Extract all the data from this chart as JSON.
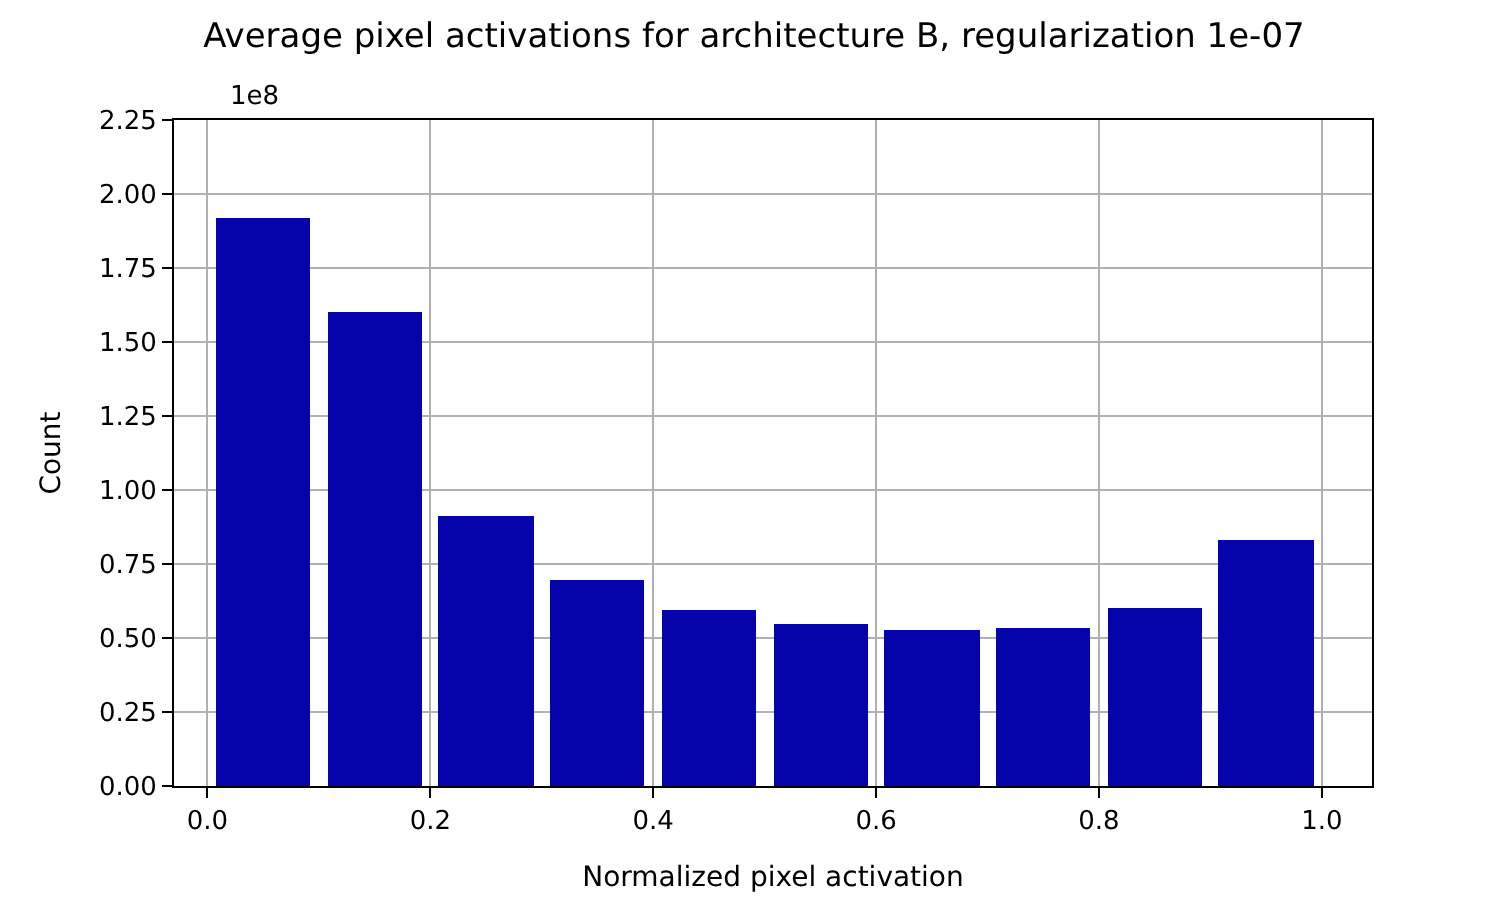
{
  "chart_data": {
    "type": "histogram",
    "title": "Average pixel activations for architecture B, regularization 1e-07",
    "xlabel": "Normalized pixel activation",
    "ylabel": "Count",
    "annotations": [
      "1e8"
    ],
    "bins": [
      0,
      0.1,
      0.2,
      0.3,
      0.4,
      0.5,
      0.6,
      0.7,
      0.8,
      0.9,
      1.0
    ],
    "values": [
      1.92,
      1.6,
      0.915,
      0.695,
      0.595,
      0.545,
      0.525,
      0.535,
      0.6,
      0.83
    ],
    "color": "#0504aa",
    "xlim": [
      -0.03,
      1.045
    ],
    "xticks": [
      {
        "value": 0,
        "label": "0.0"
      },
      {
        "value": 0.2,
        "label": "0.2"
      },
      {
        "value": 0.4,
        "label": "0.4"
      },
      {
        "value": 0.6,
        "label": "0.6"
      },
      {
        "value": 0.8,
        "label": "0.8"
      },
      {
        "value": 1.0,
        "label": "1.0"
      }
    ],
    "ylim": [
      0,
      2.25
    ],
    "yticks": [
      {
        "value": 0,
        "label": "0.00"
      },
      {
        "value": 0.25,
        "label": "0.25"
      },
      {
        "value": 0.5,
        "label": "0.50"
      },
      {
        "value": 0.75,
        "label": "0.75"
      },
      {
        "value": 1.0,
        "label": "1.00"
      },
      {
        "value": 1.25,
        "label": "1.25"
      },
      {
        "value": 1.5,
        "label": "1.50"
      },
      {
        "value": 1.75,
        "label": "1.75"
      },
      {
        "value": 2.0,
        "label": "2.00"
      },
      {
        "value": 2.25,
        "label": "2.25"
      }
    ],
    "grid": true
  }
}
